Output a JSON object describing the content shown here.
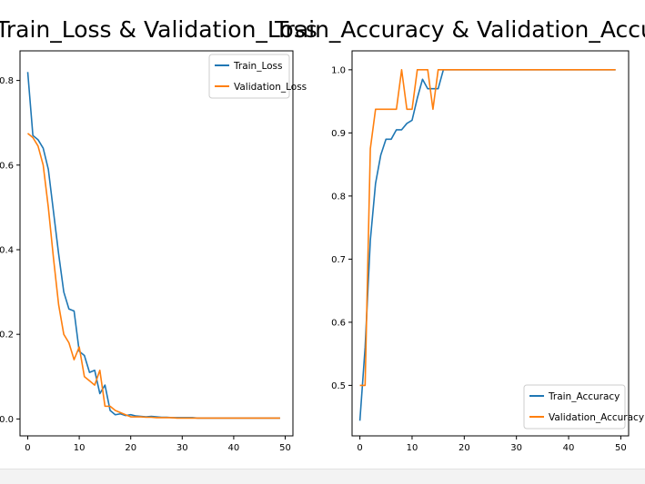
{
  "colors": {
    "train": "#1f77b4",
    "validation": "#ff7f0e"
  },
  "chart_data": [
    {
      "type": "line",
      "title": "Train_Loss & Validation_Loss",
      "xlabel": "",
      "ylabel": "",
      "xlim": [
        -1.5,
        51.5
      ],
      "ylim": [
        -0.04,
        0.87
      ],
      "xticks": [
        0,
        10,
        20,
        30,
        40,
        50
      ],
      "yticks": [
        0.0,
        0.2,
        0.4,
        0.6,
        0.8
      ],
      "xtick_labels": [
        "0",
        "10",
        "20",
        "30",
        "40",
        "50"
      ],
      "ytick_labels": [
        "0.0",
        "0.2",
        "0.4",
        "0.6",
        "0.8"
      ],
      "legend_position": "top-right",
      "grid": false,
      "x": [
        0,
        1,
        2,
        3,
        4,
        5,
        6,
        7,
        8,
        9,
        10,
        11,
        12,
        13,
        14,
        15,
        16,
        17,
        18,
        19,
        20,
        21,
        22,
        23,
        24,
        25,
        26,
        27,
        28,
        29,
        30,
        31,
        32,
        33,
        34,
        35,
        36,
        37,
        38,
        39,
        40,
        41,
        42,
        43,
        44,
        45,
        46,
        47,
        48,
        49
      ],
      "series": [
        {
          "name": "Train_Loss",
          "color_key": "train",
          "values": [
            0.82,
            0.67,
            0.66,
            0.64,
            0.59,
            0.49,
            0.39,
            0.3,
            0.26,
            0.255,
            0.16,
            0.15,
            0.11,
            0.115,
            0.06,
            0.08,
            0.02,
            0.01,
            0.012,
            0.008,
            0.01,
            0.007,
            0.006,
            0.005,
            0.006,
            0.005,
            0.004,
            0.004,
            0.003,
            0.003,
            0.003,
            0.003,
            0.003,
            0.002,
            0.002,
            0.002,
            0.002,
            0.002,
            0.002,
            0.002,
            0.002,
            0.002,
            0.002,
            0.002,
            0.002,
            0.002,
            0.002,
            0.002,
            0.002,
            0.002
          ]
        },
        {
          "name": "Validation_Loss",
          "color_key": "validation",
          "values": [
            0.675,
            0.665,
            0.645,
            0.6,
            0.5,
            0.38,
            0.27,
            0.2,
            0.18,
            0.14,
            0.17,
            0.1,
            0.09,
            0.08,
            0.115,
            0.03,
            0.03,
            0.02,
            0.015,
            0.01,
            0.005,
            0.005,
            0.005,
            0.004,
            0.004,
            0.003,
            0.003,
            0.003,
            0.003,
            0.002,
            0.002,
            0.002,
            0.002,
            0.002,
            0.002,
            0.002,
            0.002,
            0.002,
            0.002,
            0.002,
            0.002,
            0.002,
            0.002,
            0.002,
            0.002,
            0.002,
            0.002,
            0.002,
            0.002,
            0.002
          ]
        }
      ]
    },
    {
      "type": "line",
      "title": "Train_Accuracy & Validation_Accuracy",
      "xlabel": "",
      "ylabel": "",
      "xlim": [
        -1.5,
        51.5
      ],
      "ylim": [
        0.42,
        1.03
      ],
      "xticks": [
        0,
        10,
        20,
        30,
        40,
        50
      ],
      "yticks": [
        0.5,
        0.6,
        0.7,
        0.8,
        0.9,
        1.0
      ],
      "xtick_labels": [
        "0",
        "10",
        "20",
        "30",
        "40",
        "50"
      ],
      "ytick_labels": [
        "0.5",
        "0.6",
        "0.7",
        "0.8",
        "0.9",
        "1.0"
      ],
      "legend_position": "bottom-right",
      "grid": false,
      "x": [
        0,
        1,
        2,
        3,
        4,
        5,
        6,
        7,
        8,
        9,
        10,
        11,
        12,
        13,
        14,
        15,
        16,
        17,
        18,
        19,
        20,
        21,
        22,
        23,
        24,
        25,
        26,
        27,
        28,
        29,
        30,
        31,
        32,
        33,
        34,
        35,
        36,
        37,
        38,
        39,
        40,
        41,
        42,
        43,
        44,
        45,
        46,
        47,
        48,
        49
      ],
      "series": [
        {
          "name": "Train_Accuracy",
          "color_key": "train",
          "values": [
            0.444,
            0.56,
            0.73,
            0.82,
            0.865,
            0.89,
            0.89,
            0.905,
            0.905,
            0.915,
            0.92,
            0.955,
            0.985,
            0.97,
            0.97,
            0.97,
            1.0,
            1.0,
            1.0,
            1.0,
            1.0,
            1.0,
            1.0,
            1.0,
            1.0,
            1.0,
            1.0,
            1.0,
            1.0,
            1.0,
            1.0,
            1.0,
            1.0,
            1.0,
            1.0,
            1.0,
            1.0,
            1.0,
            1.0,
            1.0,
            1.0,
            1.0,
            1.0,
            1.0,
            1.0,
            1.0,
            1.0,
            1.0,
            1.0,
            1.0
          ]
        },
        {
          "name": "Validation_Accuracy",
          "color_key": "validation",
          "values": [
            0.5,
            0.5,
            0.875,
            0.9375,
            0.9375,
            0.9375,
            0.9375,
            0.9375,
            1.0,
            0.9375,
            0.9375,
            1.0,
            1.0,
            1.0,
            0.9375,
            1.0,
            1.0,
            1.0,
            1.0,
            1.0,
            1.0,
            1.0,
            1.0,
            1.0,
            1.0,
            1.0,
            1.0,
            1.0,
            1.0,
            1.0,
            1.0,
            1.0,
            1.0,
            1.0,
            1.0,
            1.0,
            1.0,
            1.0,
            1.0,
            1.0,
            1.0,
            1.0,
            1.0,
            1.0,
            1.0,
            1.0,
            1.0,
            1.0,
            1.0,
            1.0
          ]
        }
      ]
    }
  ]
}
